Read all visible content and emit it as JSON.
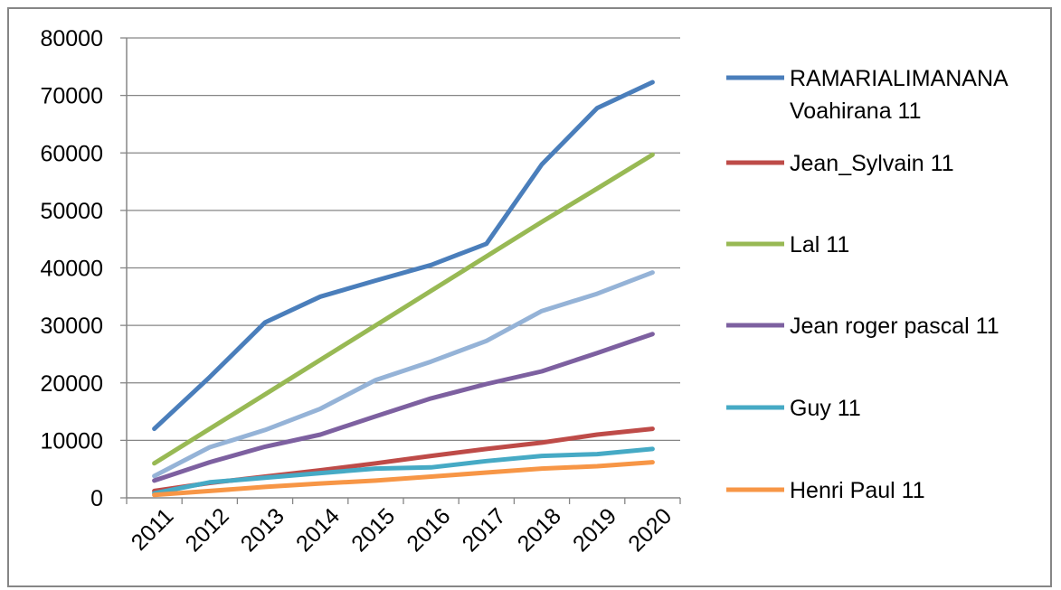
{
  "chart_data": {
    "type": "line",
    "title": "",
    "xlabel": "",
    "ylabel": "",
    "categories": [
      "2011",
      "2012",
      "2013",
      "2014",
      "2015",
      "2016",
      "2017",
      "2018",
      "2019",
      "2020"
    ],
    "ylim": [
      0,
      80000
    ],
    "yticks": [
      "0",
      "10000",
      "20000",
      "30000",
      "40000",
      "50000",
      "60000",
      "70000",
      "80000"
    ],
    "grid": true,
    "legend_position": "right",
    "series": [
      {
        "name": "RAMARIALIMANANA Voahirana 11",
        "color": "#4a7ebb",
        "values": [
          12000,
          21000,
          30500,
          35000,
          37800,
          40500,
          44200,
          58000,
          67800,
          72300
        ],
        "in_legend": true
      },
      {
        "name": "Jean_Sylvain 11",
        "color": "#be4b48",
        "values": [
          1200,
          2600,
          3700,
          4800,
          6000,
          7300,
          8500,
          9600,
          11000,
          12000
        ],
        "in_legend": true
      },
      {
        "name": "Lal 11",
        "color": "#98b954",
        "values": [
          6000,
          12000,
          18000,
          24000,
          30000,
          36000,
          42000,
          48000,
          53800,
          59700
        ],
        "in_legend": true
      },
      {
        "name": "",
        "color": "#95b3d7",
        "values": [
          3800,
          8800,
          11800,
          15500,
          20500,
          23700,
          27300,
          32500,
          35500,
          39200
        ],
        "in_legend": false
      },
      {
        "name": "Jean roger pascal 11",
        "color": "#7d60a0",
        "values": [
          3000,
          6200,
          8900,
          11000,
          14200,
          17300,
          19800,
          22000,
          25200,
          28500
        ],
        "in_legend": true
      },
      {
        "name": "Guy 11",
        "color": "#46aac5",
        "values": [
          800,
          2700,
          3500,
          4300,
          5100,
          5300,
          6400,
          7300,
          7600,
          8500
        ],
        "in_legend": true
      },
      {
        "name": "Henri Paul 11",
        "color": "#f79646",
        "values": [
          500,
          1200,
          1900,
          2500,
          3000,
          3700,
          4400,
          5100,
          5500,
          6200
        ],
        "in_legend": true
      }
    ]
  }
}
